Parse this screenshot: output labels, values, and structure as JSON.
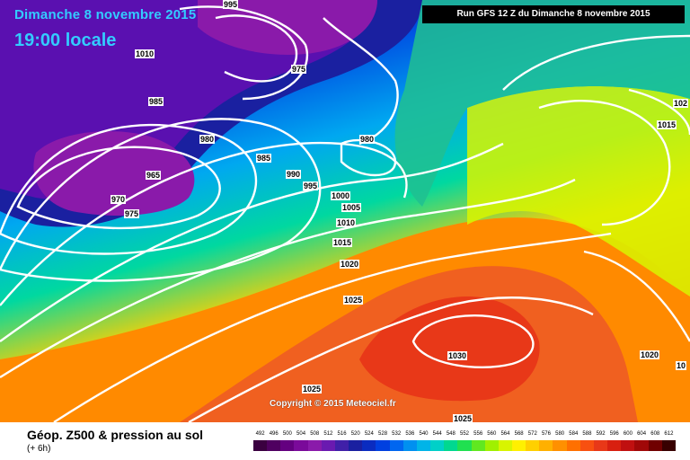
{
  "header": {
    "date": "Dimanche 8 novembre 2015",
    "time": "19:00 locale",
    "run": "Run GFS 12 Z du Dimanche 8 novembre 2015"
  },
  "copyright": "Copyright © 2015 Meteociel.fr",
  "legend": {
    "title": "Géop. Z500 & pression au sol",
    "subtitle": "(+ 6h)",
    "scale": [
      {
        "label": "492",
        "color": "#3a0040"
      },
      {
        "label": "496",
        "color": "#4f0060"
      },
      {
        "label": "500",
        "color": "#640080"
      },
      {
        "label": "504",
        "color": "#7a0a9a"
      },
      {
        "label": "508",
        "color": "#8a1aaa"
      },
      {
        "label": "512",
        "color": "#6a1ab0"
      },
      {
        "label": "516",
        "color": "#4020a8"
      },
      {
        "label": "520",
        "color": "#1a20a0"
      },
      {
        "label": "524",
        "color": "#0a2cc0"
      },
      {
        "label": "528",
        "color": "#0040e0"
      },
      {
        "label": "532",
        "color": "#0066f0"
      },
      {
        "label": "536",
        "color": "#0090f0"
      },
      {
        "label": "540",
        "color": "#00b4e8"
      },
      {
        "label": "544",
        "color": "#00d0c8"
      },
      {
        "label": "548",
        "color": "#00d890"
      },
      {
        "label": "552",
        "color": "#20e050"
      },
      {
        "label": "556",
        "color": "#60e820"
      },
      {
        "label": "560",
        "color": "#a0f000"
      },
      {
        "label": "564",
        "color": "#d8f400"
      },
      {
        "label": "568",
        "color": "#fff000"
      },
      {
        "label": "572",
        "color": "#ffd000"
      },
      {
        "label": "576",
        "color": "#ffb000"
      },
      {
        "label": "580",
        "color": "#ff9000"
      },
      {
        "label": "584",
        "color": "#ff7000"
      },
      {
        "label": "588",
        "color": "#f85010"
      },
      {
        "label": "592",
        "color": "#e83818"
      },
      {
        "label": "596",
        "color": "#d82010"
      },
      {
        "label": "600",
        "color": "#c01010"
      },
      {
        "label": "604",
        "color": "#a00808"
      },
      {
        "label": "608",
        "color": "#700000"
      },
      {
        "label": "612",
        "color": "#380000"
      }
    ]
  },
  "isobars": [
    {
      "label": "995"
    },
    {
      "label": "1010"
    },
    {
      "label": "975"
    },
    {
      "label": "985"
    },
    {
      "label": "980"
    },
    {
      "label": "980"
    },
    {
      "label": "985"
    },
    {
      "label": "990"
    },
    {
      "label": "965"
    },
    {
      "label": "995"
    },
    {
      "label": "970"
    },
    {
      "label": "975"
    },
    {
      "label": "1000"
    },
    {
      "label": "1005"
    },
    {
      "label": "1010"
    },
    {
      "label": "1015"
    },
    {
      "label": "1020"
    },
    {
      "label": "1025"
    },
    {
      "label": "1030"
    },
    {
      "label": "1025"
    },
    {
      "label": "1025"
    },
    {
      "label": "1020"
    },
    {
      "label": "1015"
    },
    {
      "label": "102"
    },
    {
      "label": "10"
    }
  ]
}
